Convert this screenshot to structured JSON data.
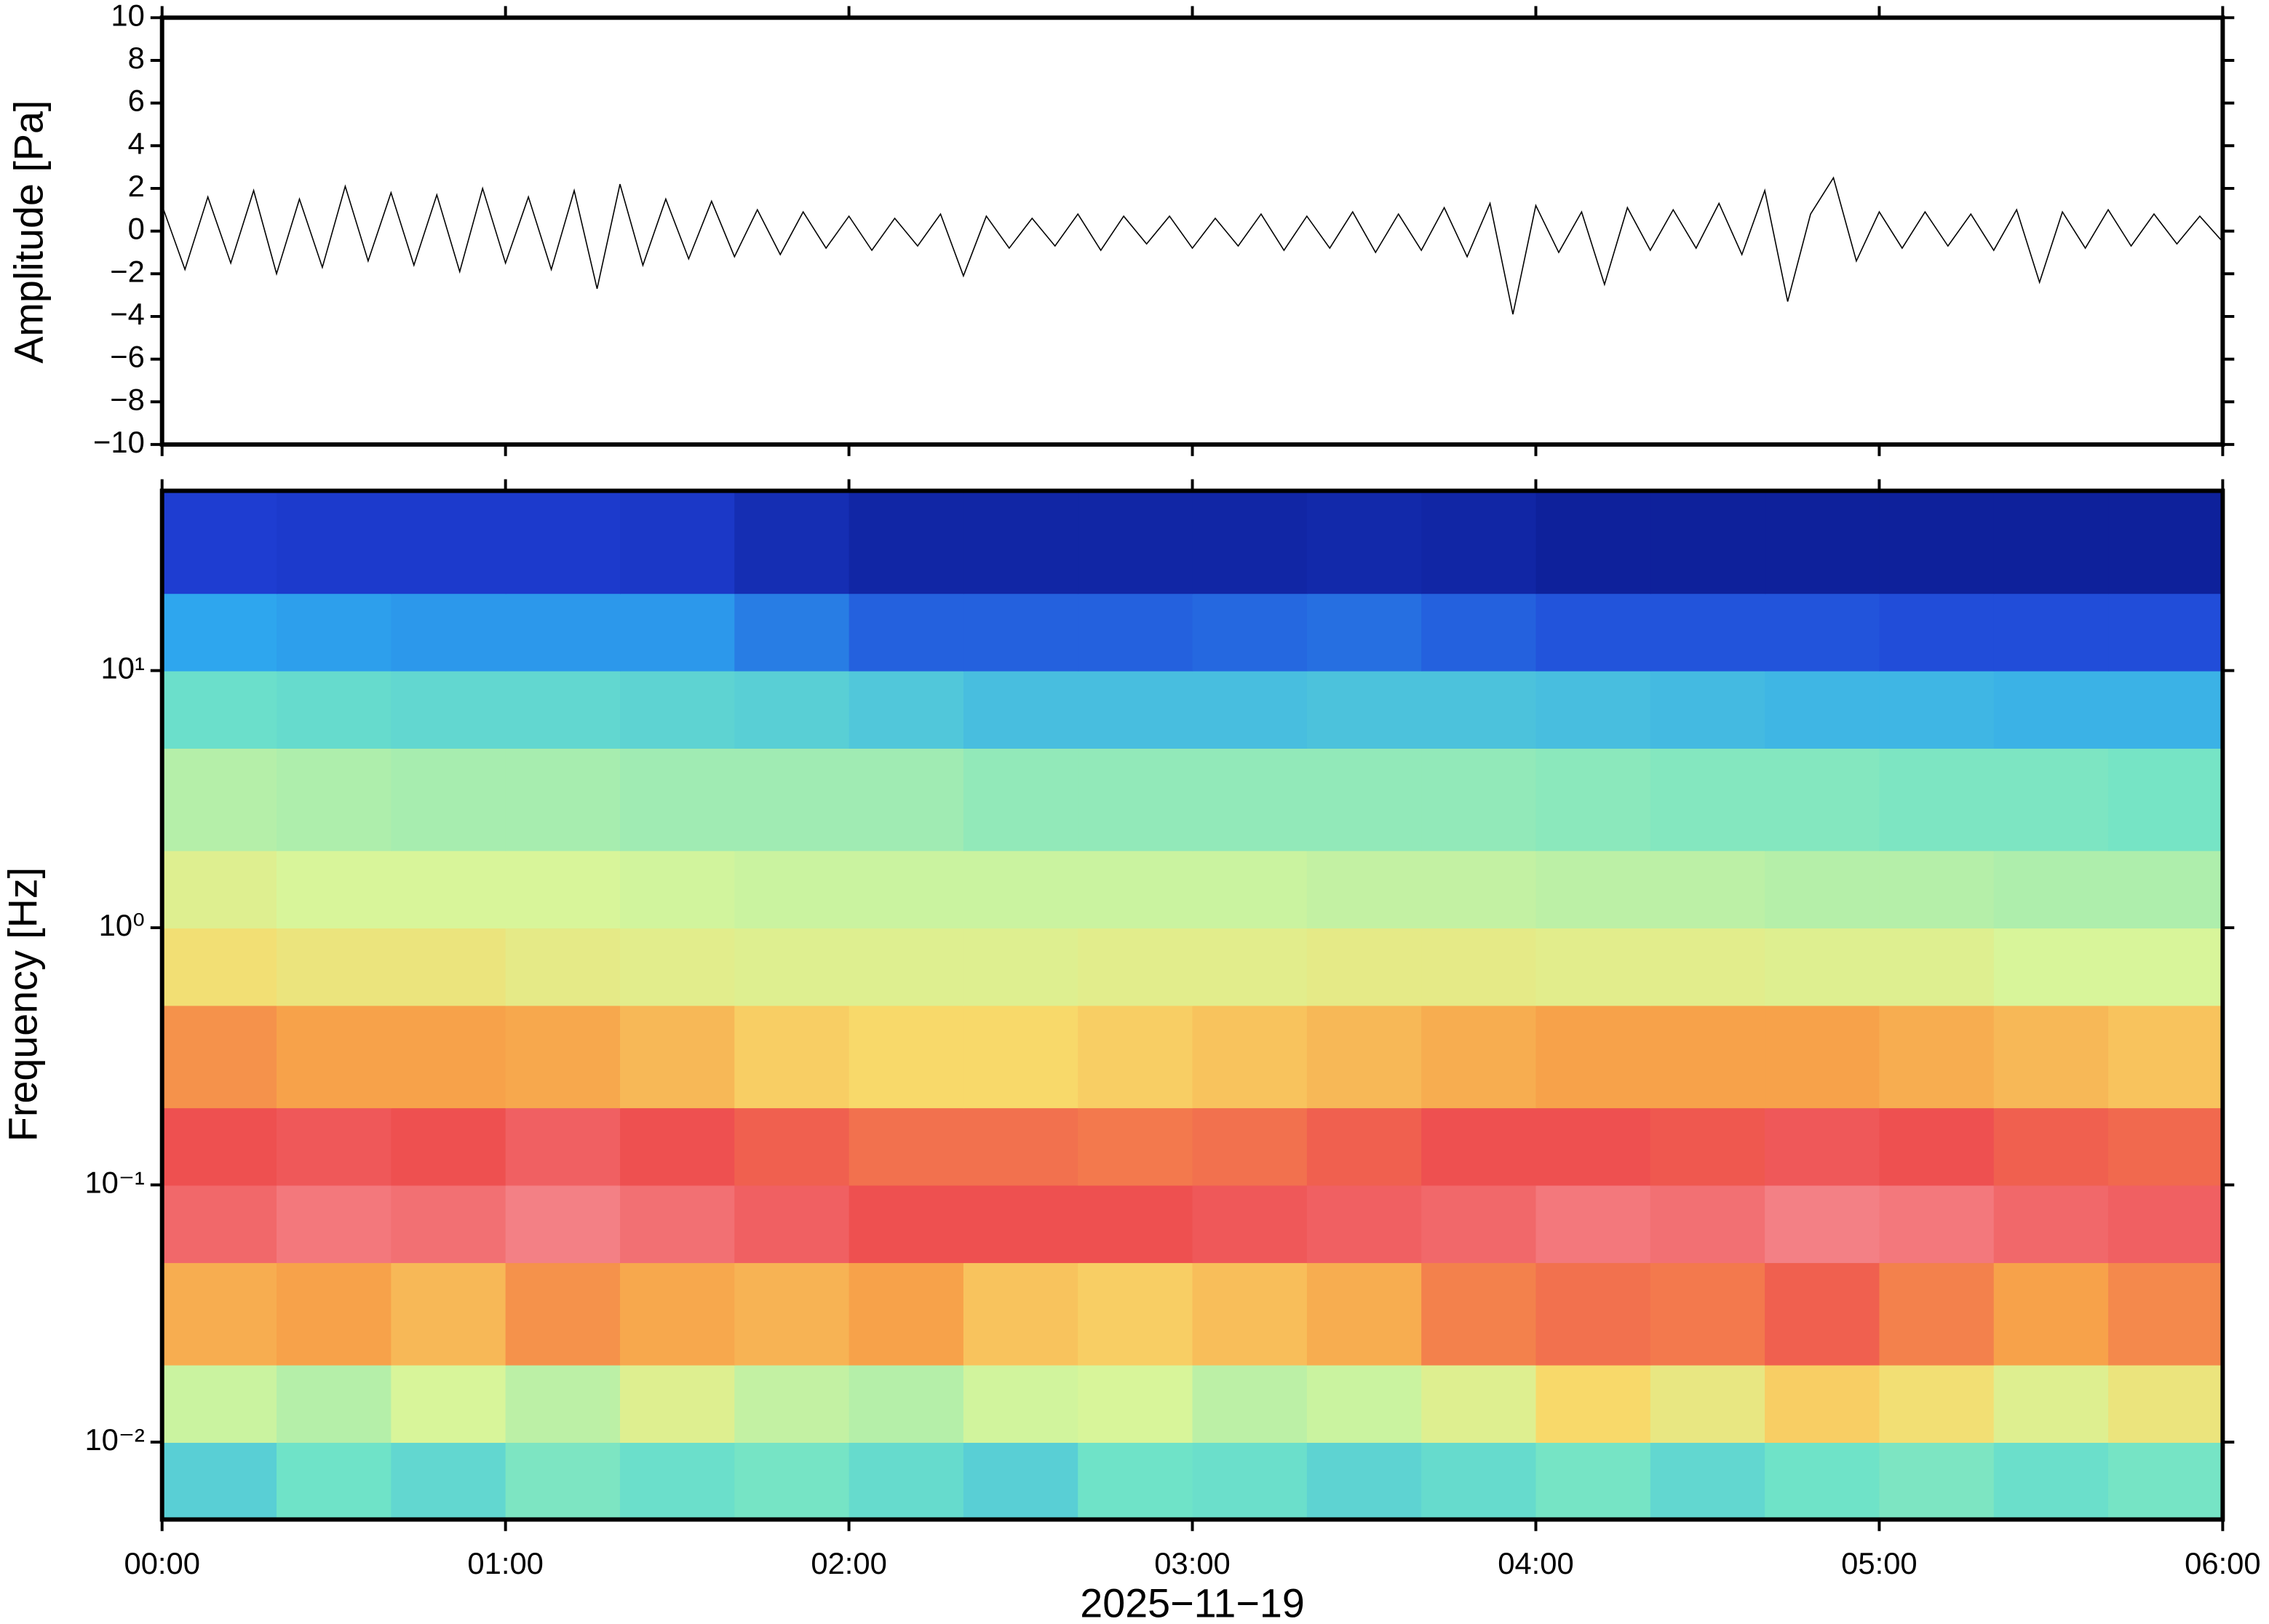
{
  "chart_data": [
    {
      "type": "line",
      "ylabel": "Amplitude [Pa]",
      "color": "#000000",
      "xlim": [
        0,
        360
      ],
      "ylim": [
        -10,
        10
      ],
      "yticks": [
        {
          "value": -10,
          "label": "−10"
        },
        {
          "value": -8,
          "label": "−8"
        },
        {
          "value": -6,
          "label": "−6"
        },
        {
          "value": -4,
          "label": "−4"
        },
        {
          "value": -2,
          "label": "−2"
        },
        0,
        2,
        4,
        6,
        8,
        10
      ],
      "x": [
        0,
        4,
        8,
        12,
        16,
        20,
        24,
        28,
        32,
        36,
        40,
        44,
        48,
        52,
        56,
        60,
        64,
        68,
        72,
        76,
        80,
        84,
        88,
        92,
        96,
        100,
        104,
        108,
        112,
        116,
        120,
        124,
        128,
        132,
        136,
        140,
        144,
        148,
        152,
        156,
        160,
        164,
        168,
        172,
        176,
        180,
        184,
        188,
        192,
        196,
        200,
        204,
        208,
        212,
        216,
        220,
        224,
        228,
        232,
        236,
        240,
        244,
        248,
        252,
        256,
        260,
        264,
        268,
        272,
        276,
        280,
        284,
        288,
        292,
        296,
        300,
        304,
        308,
        312,
        316,
        320,
        324,
        328,
        332,
        336,
        340,
        344,
        348,
        352,
        356,
        360
      ],
      "values": [
        1.2,
        -1.8,
        1.6,
        -1.5,
        1.9,
        -2.0,
        1.5,
        -1.7,
        2.1,
        -1.4,
        1.8,
        -1.6,
        1.7,
        -1.9,
        2.0,
        -1.5,
        1.6,
        -1.8,
        1.9,
        -2.7,
        2.2,
        -1.6,
        1.5,
        -1.3,
        1.4,
        -1.2,
        1.0,
        -1.1,
        0.9,
        -0.8,
        0.7,
        -0.9,
        0.6,
        -0.7,
        0.8,
        -2.1,
        0.7,
        -0.8,
        0.6,
        -0.7,
        0.8,
        -0.9,
        0.7,
        -0.6,
        0.7,
        -0.8,
        0.6,
        -0.7,
        0.8,
        -0.9,
        0.7,
        -0.8,
        0.9,
        -1.0,
        0.8,
        -0.9,
        1.1,
        -1.2,
        1.3,
        -3.9,
        1.2,
        -1.0,
        0.9,
        -2.5,
        1.1,
        -0.9,
        1.0,
        -0.8,
        1.3,
        -1.1,
        1.9,
        -3.3,
        0.8,
        2.5,
        -1.4,
        0.9,
        -0.8,
        0.9,
        -0.7,
        0.8,
        -0.9,
        1.0,
        -2.4,
        0.9,
        -0.8,
        1.0,
        -0.7,
        0.8,
        -0.6,
        0.7,
        -0.5
      ]
    },
    {
      "type": "heatmap",
      "ylabel": "Frequency [Hz]",
      "xlabel": "2025−11−19",
      "ylog": true,
      "xlim": [
        0,
        360
      ],
      "xticks": [
        {
          "value": 0,
          "label": "00:00"
        },
        {
          "value": 60,
          "label": "01:00"
        },
        {
          "value": 120,
          "label": "02:00"
        },
        {
          "value": 180,
          "label": "03:00"
        },
        {
          "value": 240,
          "label": "04:00"
        },
        {
          "value": 300,
          "label": "05:00"
        },
        {
          "value": 360,
          "label": "06:00"
        }
      ],
      "ylim": [
        0.005,
        50
      ],
      "yticks": [
        {
          "value": 0.01,
          "label": "10⁻²"
        },
        {
          "value": 0.1,
          "label": "10⁻¹"
        },
        {
          "value": 1,
          "label": "10⁰"
        },
        {
          "value": 10,
          "label": "10¹"
        }
      ],
      "bins": [
        0,
        20,
        40,
        60,
        80,
        100,
        120,
        140,
        160,
        180,
        200,
        220,
        240,
        260,
        280,
        300,
        320,
        340,
        360
      ],
      "ybins": [
        0.005,
        0.01,
        0.02,
        0.05,
        0.1,
        0.2,
        0.5,
        1,
        2,
        5,
        10,
        20,
        50
      ],
      "colorscale": [
        [
          0,
          "#0a1a8c"
        ],
        [
          0.15,
          "#1f3fd6"
        ],
        [
          0.3,
          "#2ea6ee"
        ],
        [
          0.45,
          "#6fe3c8"
        ],
        [
          0.6,
          "#d8f59a"
        ],
        [
          0.7,
          "#f8d96a"
        ],
        [
          0.8,
          "#f7a24a"
        ],
        [
          0.9,
          "#ee5050"
        ],
        [
          1,
          "#f7a0a8"
        ]
      ],
      "values": [
        [
          0.4,
          0.45,
          0.42,
          0.47,
          0.44,
          0.46,
          0.43,
          0.4,
          0.45,
          0.44,
          0.41,
          0.43,
          0.46,
          0.42,
          0.45,
          0.47,
          0.44,
          0.46
        ],
        [
          0.58,
          0.55,
          0.6,
          0.56,
          0.62,
          0.57,
          0.55,
          0.59,
          0.6,
          0.56,
          0.58,
          0.62,
          0.7,
          0.65,
          0.72,
          0.68,
          0.62,
          0.66
        ],
        [
          0.78,
          0.8,
          0.76,
          0.82,
          0.79,
          0.77,
          0.8,
          0.74,
          0.72,
          0.75,
          0.78,
          0.84,
          0.86,
          0.85,
          0.88,
          0.84,
          0.8,
          0.83
        ],
        [
          0.93,
          0.95,
          0.94,
          0.96,
          0.94,
          0.92,
          0.9,
          0.9,
          0.9,
          0.91,
          0.92,
          0.93,
          0.95,
          0.94,
          0.96,
          0.95,
          0.93,
          0.92
        ],
        [
          0.9,
          0.91,
          0.9,
          0.92,
          0.9,
          0.88,
          0.86,
          0.86,
          0.85,
          0.86,
          0.88,
          0.9,
          0.9,
          0.89,
          0.91,
          0.9,
          0.88,
          0.87
        ],
        [
          0.82,
          0.8,
          0.8,
          0.79,
          0.76,
          0.72,
          0.7,
          0.7,
          0.72,
          0.74,
          0.76,
          0.78,
          0.8,
          0.8,
          0.8,
          0.78,
          0.76,
          0.74
        ],
        [
          0.68,
          0.66,
          0.66,
          0.64,
          0.63,
          0.62,
          0.62,
          0.62,
          0.63,
          0.63,
          0.64,
          0.64,
          0.63,
          0.63,
          0.62,
          0.62,
          0.6,
          0.6
        ],
        [
          0.62,
          0.6,
          0.6,
          0.6,
          0.59,
          0.58,
          0.58,
          0.58,
          0.58,
          0.58,
          0.57,
          0.57,
          0.56,
          0.56,
          0.55,
          0.55,
          0.54,
          0.54
        ],
        [
          0.55,
          0.54,
          0.53,
          0.53,
          0.52,
          0.52,
          0.52,
          0.5,
          0.5,
          0.5,
          0.5,
          0.5,
          0.49,
          0.48,
          0.48,
          0.47,
          0.47,
          0.46
        ],
        [
          0.44,
          0.43,
          0.42,
          0.42,
          0.41,
          0.4,
          0.38,
          0.36,
          0.36,
          0.36,
          0.37,
          0.37,
          0.36,
          0.35,
          0.34,
          0.34,
          0.33,
          0.33
        ],
        [
          0.3,
          0.29,
          0.28,
          0.28,
          0.28,
          0.24,
          0.2,
          0.2,
          0.2,
          0.21,
          0.22,
          0.2,
          0.18,
          0.18,
          0.18,
          0.17,
          0.17,
          0.17
        ],
        [
          0.14,
          0.13,
          0.13,
          0.13,
          0.12,
          0.08,
          0.05,
          0.05,
          0.05,
          0.05,
          0.06,
          0.05,
          0.03,
          0.03,
          0.03,
          0.03,
          0.03,
          0.03
        ]
      ]
    }
  ]
}
